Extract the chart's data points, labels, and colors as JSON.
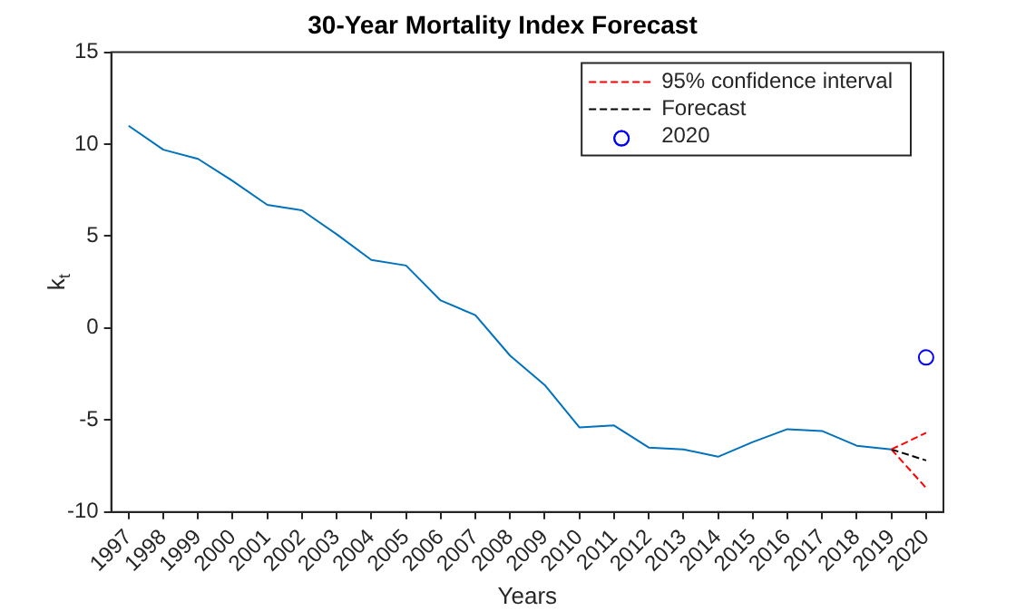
{
  "chart_data": {
    "type": "line",
    "title": "30-Year Mortality Index Forecast",
    "xlabel": "Years",
    "ylabel": "k$_{t}$",
    "xlim": [
      1996.5,
      2020.5
    ],
    "xticks": [
      1997,
      1998,
      1999,
      2000,
      2001,
      2002,
      2003,
      2004,
      2005,
      2006,
      2007,
      2008,
      2009,
      2010,
      2011,
      2012,
      2013,
      2014,
      2015,
      2016,
      2017,
      2018,
      2019,
      2020
    ],
    "ylim": [
      -10,
      15
    ],
    "yticks": [
      -10,
      -5,
      0,
      5,
      10,
      15
    ],
    "grid": false,
    "legend": "top right",
    "marker": "none",
    "series": [
      {
        "color": "#0072bd",
        "line_style": "solid",
        "x": [
          1997,
          1998,
          1999,
          2000,
          2001,
          2002,
          2003,
          2004,
          2005,
          2006,
          2007,
          2008,
          2009,
          2010,
          2011,
          2012,
          2013,
          2014,
          2015,
          2016,
          2017,
          2018,
          2019
        ],
        "values": [
          11.0,
          9.7,
          9.2,
          8.0,
          6.7,
          6.4,
          5.1,
          3.7,
          3.4,
          1.5,
          0.7,
          -1.5,
          -3.1,
          -5.4,
          -5.3,
          -6.5,
          -6.6,
          -7.0,
          -6.2,
          -5.5,
          -5.6,
          -6.4,
          -6.6
        ]
      },
      {
        "name": "95% confidence interval",
        "color": "#ff0000",
        "line_style": "dashed",
        "x": [
          2019,
          2020
        ],
        "values": [
          -6.6,
          -5.7
        ]
      },
      {
        "name": "Forecast",
        "color": "#000000",
        "line_style": "dashed",
        "x": [
          2019,
          2020
        ],
        "values": [
          -6.6,
          -7.2
        ]
      },
      {
        "type": "scatter",
        "name": "2020",
        "color": "#0000ff",
        "marker": "circle",
        "x": [
          2020
        ],
        "values": [
          -1.6
        ]
      },
      {
        "color": "#ff0000",
        "line_style": "dashed",
        "x": [
          2019,
          2020
        ],
        "values": [
          -6.6,
          -8.7
        ]
      }
    ]
  }
}
